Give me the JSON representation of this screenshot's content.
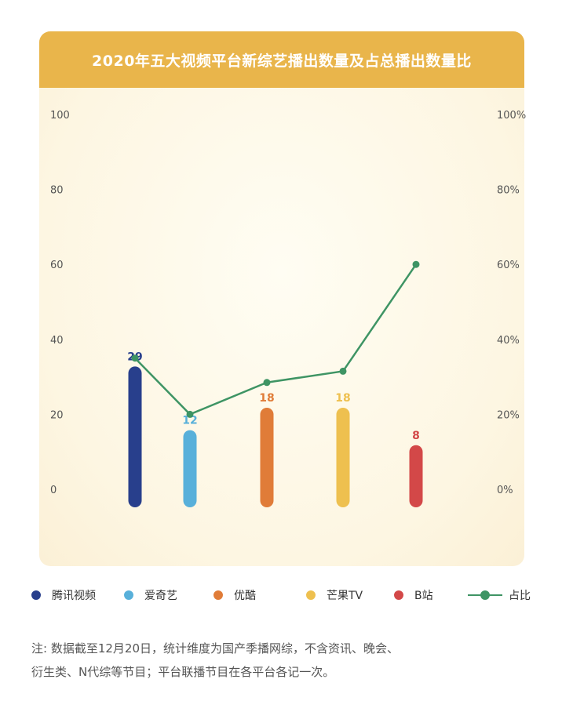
{
  "chart_data": {
    "type": "bar",
    "title": "2020年五大视频平台新综艺播出数量及占总播出数量比",
    "categories": [
      "腾讯视频",
      "爱奇艺",
      "优酷",
      "芒果TV",
      "B站"
    ],
    "series": [
      {
        "name": "",
        "type": "bar",
        "values": [
          29,
          12,
          18,
          18,
          8
        ],
        "colors": [
          "#283f8c",
          "#58b0da",
          "#e07c38",
          "#eec04f",
          "#d34848"
        ]
      },
      {
        "name": "占比",
        "type": "line",
        "axis": "right",
        "values": [
          35,
          20,
          28.5,
          31.5,
          60
        ],
        "color": "#3e9464"
      }
    ],
    "y_left": {
      "range": [
        0,
        100
      ],
      "ticks": [
        "0",
        "20",
        "40",
        "60",
        "80",
        "100"
      ]
    },
    "y_right": {
      "range": [
        0,
        100
      ],
      "ticks": [
        "0%",
        "20%",
        "40%",
        "60%",
        "80%",
        "100%"
      ]
    },
    "grid": false,
    "legend": {
      "position": "bottom",
      "items": [
        {
          "label": "腾讯视频",
          "color": "#283f8c",
          "kind": "dot"
        },
        {
          "label": "爱奇艺",
          "color": "#58b0da",
          "kind": "dot"
        },
        {
          "label": "优酷",
          "color": "#e07c38",
          "kind": "dot"
        },
        {
          "label": "芒果TV",
          "color": "#eec04f",
          "kind": "dot"
        },
        {
          "label": "B站",
          "color": "#d34848",
          "kind": "dot"
        },
        {
          "label": "占比",
          "color": "#3e9464",
          "kind": "line"
        }
      ]
    }
  },
  "footnote": {
    "line1": "注: 数据截至12月20日，统计维度为国产季播网综，不含资讯、晚会、",
    "line2": "衍生类、N代综等节目；平台联播节目在各平台各记一次。"
  }
}
